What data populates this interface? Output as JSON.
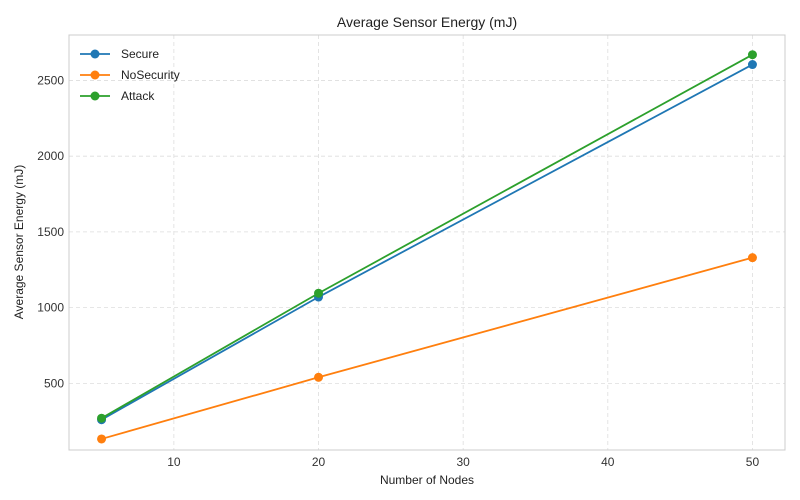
{
  "chart_data": {
    "type": "line",
    "title": "Average Sensor Energy (mJ)",
    "xlabel": "Number of Nodes",
    "ylabel": "Average Sensor Energy (mJ)",
    "x": [
      5,
      20,
      50
    ],
    "xlim": [
      2.75,
      52.25
    ],
    "ylim": [
      60,
      2800
    ],
    "xticks": [
      10,
      20,
      30,
      40,
      50
    ],
    "yticks": [
      500,
      1000,
      1500,
      2000,
      2500
    ],
    "grid": true,
    "legend_position": "upper-left",
    "series": [
      {
        "name": "Secure",
        "color": "#1f77b4",
        "values": [
          260,
          1070,
          2605
        ]
      },
      {
        "name": "NoSecurity",
        "color": "#ff7f0e",
        "values": [
          133,
          540,
          1330
        ]
      },
      {
        "name": "Attack",
        "color": "#2ca02c",
        "values": [
          270,
          1095,
          2670
        ]
      }
    ]
  }
}
